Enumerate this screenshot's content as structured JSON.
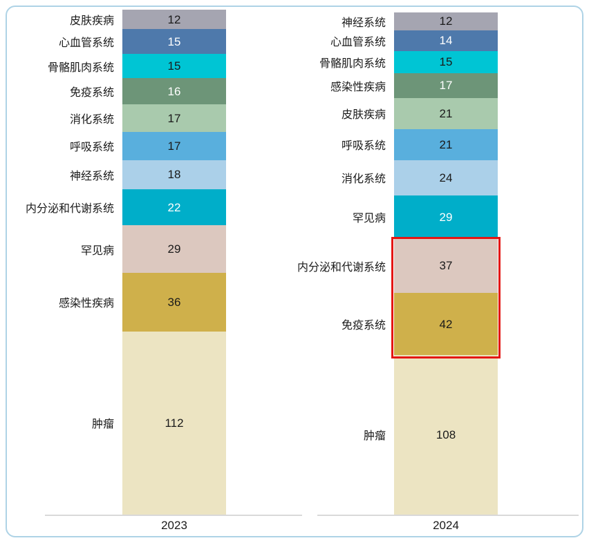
{
  "panel": {
    "background": "#ffffff",
    "border_color": "#aed3e6"
  },
  "axis": {
    "line_color": "#d9d9d9"
  },
  "chart_data": [
    {
      "type": "bar",
      "stacked": true,
      "orientation": "vertical",
      "x_label": "2023",
      "legend": false,
      "data_labels_position": "inside-center",
      "category_labels_position": "left-of-bar",
      "segments": [
        {
          "label": "皮肤疾病",
          "value": 12,
          "color": "#a5a5b1",
          "text_color": "#1a1a1a"
        },
        {
          "label": "心血管系统",
          "value": 15,
          "color": "#4e79ab",
          "text_color": "#ffffff"
        },
        {
          "label": "骨骼肌肉系统",
          "value": 15,
          "color": "#00c5d4",
          "text_color": "#1a1a1a"
        },
        {
          "label": "免疫系统",
          "value": 16,
          "color": "#6d9578",
          "text_color": "#ffffff"
        },
        {
          "label": "消化系统",
          "value": 17,
          "color": "#a9caad",
          "text_color": "#1a1a1a"
        },
        {
          "label": "呼吸系统",
          "value": 17,
          "color": "#59afdd",
          "text_color": "#1a1a1a"
        },
        {
          "label": "神经系统",
          "value": 18,
          "color": "#abd0e9",
          "text_color": "#1a1a1a"
        },
        {
          "label": "内分泌和代谢系统",
          "value": 22,
          "color": "#00aec9",
          "text_color": "#ffffff"
        },
        {
          "label": "罕见病",
          "value": 29,
          "color": "#dcc8bf",
          "text_color": "#1a1a1a"
        },
        {
          "label": "感染性疾病",
          "value": 36,
          "color": "#cfb04b",
          "text_color": "#1a1a1a"
        },
        {
          "label": "肿瘤",
          "value": 112,
          "color": "#ece4c2",
          "text_color": "#1a1a1a"
        }
      ]
    },
    {
      "type": "bar",
      "stacked": true,
      "orientation": "vertical",
      "x_label": "2024",
      "legend": false,
      "data_labels_position": "inside-center",
      "category_labels_position": "left-of-bar",
      "segments": [
        {
          "label": "神经系统",
          "value": 12,
          "color": "#a5a5b1",
          "text_color": "#1a1a1a"
        },
        {
          "label": "心血管系统",
          "value": 14,
          "color": "#4e79ab",
          "text_color": "#ffffff"
        },
        {
          "label": "骨骼肌肉系统",
          "value": 15,
          "color": "#00c5d4",
          "text_color": "#1a1a1a"
        },
        {
          "label": "感染性疾病",
          "value": 17,
          "color": "#6d9578",
          "text_color": "#ffffff"
        },
        {
          "label": "皮肤疾病",
          "value": 21,
          "color": "#a9caad",
          "text_color": "#1a1a1a"
        },
        {
          "label": "呼吸系统",
          "value": 21,
          "color": "#59afdd",
          "text_color": "#1a1a1a"
        },
        {
          "label": "消化系统",
          "value": 24,
          "color": "#abd0e9",
          "text_color": "#1a1a1a"
        },
        {
          "label": "罕见病",
          "value": 29,
          "color": "#00aec9",
          "text_color": "#ffffff"
        },
        {
          "label": "内分泌和代谢系统",
          "value": 37,
          "color": "#dcc8bf",
          "text_color": "#1a1a1a"
        },
        {
          "label": "免疫系统",
          "value": 42,
          "color": "#cfb04b",
          "text_color": "#1a1a1a"
        },
        {
          "label": "肿瘤",
          "value": 108,
          "color": "#ece4c2",
          "text_color": "#1a1a1a"
        }
      ]
    }
  ],
  "highlight": {
    "chart_index": 1,
    "chart_x_label": "2024",
    "start_segment": "内分泌和代谢系统",
    "end_segment": "免疫系统",
    "border_color": "#e41613"
  }
}
